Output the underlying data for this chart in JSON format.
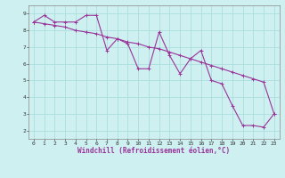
{
  "xlabel": "Windchill (Refroidissement éolien,°C)",
  "background_color": "#cff0f0",
  "grid_color": "#aadddd",
  "line_color": "#993399",
  "xlim": [
    -0.5,
    23.5
  ],
  "ylim": [
    1.5,
    9.5
  ],
  "xticks": [
    0,
    1,
    2,
    3,
    4,
    5,
    6,
    7,
    8,
    9,
    10,
    11,
    12,
    13,
    14,
    15,
    16,
    17,
    18,
    19,
    20,
    21,
    22,
    23
  ],
  "yticks": [
    2,
    3,
    4,
    5,
    6,
    7,
    8,
    9
  ],
  "series1_x": [
    0,
    1,
    2,
    3,
    4,
    5,
    6,
    7,
    8,
    9,
    10,
    11,
    12,
    13,
    14,
    15,
    16,
    17,
    18,
    19,
    20,
    21,
    22,
    23
  ],
  "series1_y": [
    8.5,
    8.9,
    8.5,
    8.5,
    8.5,
    8.9,
    8.9,
    6.8,
    7.5,
    7.2,
    5.7,
    5.7,
    7.9,
    6.5,
    5.4,
    6.3,
    6.8,
    5.0,
    4.8,
    3.5,
    2.3,
    2.3,
    2.2,
    3.0
  ],
  "series2_x": [
    0,
    1,
    2,
    3,
    4,
    5,
    6,
    7,
    8,
    9,
    10,
    11,
    12,
    13,
    14,
    15,
    16,
    17,
    18,
    19,
    20,
    21,
    22,
    23
  ],
  "series2_y": [
    8.5,
    8.4,
    8.3,
    8.2,
    8.0,
    7.9,
    7.8,
    7.6,
    7.5,
    7.3,
    7.2,
    7.0,
    6.9,
    6.7,
    6.5,
    6.3,
    6.1,
    5.9,
    5.7,
    5.5,
    5.3,
    5.1,
    4.9,
    3.0
  ],
  "line_width": 0.8,
  "tick_fontsize": 4.5,
  "label_fontsize": 5.5,
  "marker_size": 2.5
}
